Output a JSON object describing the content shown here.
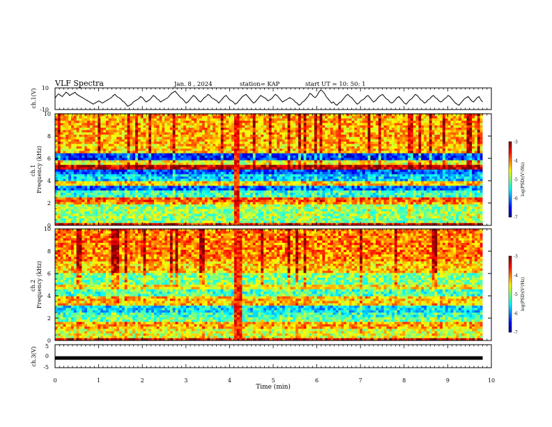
{
  "header": {
    "title": "VLF Spectra",
    "date": "Jan. 8 , 2024",
    "station": "station= KAP",
    "start_time": "start UT = 10: 50: 1"
  },
  "chart_data": [
    {
      "type": "line",
      "ylabel": "ch.1(V)",
      "ylim": [
        -10,
        10
      ],
      "yticks": [
        "10",
        "-10"
      ],
      "xlim": [
        0,
        10
      ],
      "x_end": 9.8,
      "series": [
        {
          "values": [
            0.5,
            3,
            4.5,
            3,
            2,
            4,
            6,
            5,
            3,
            4,
            5,
            6,
            4,
            3,
            2,
            1,
            0,
            -1,
            -2,
            -3,
            -4,
            -5,
            -4,
            -3,
            -2,
            -3,
            -4,
            -3,
            -2,
            -1,
            0,
            1,
            3,
            4,
            2,
            1,
            0,
            -2,
            -3,
            -5,
            -7,
            -6,
            -5,
            -3,
            -2,
            -1,
            0,
            2,
            1,
            -1,
            -3,
            -2,
            -1,
            1,
            3,
            2,
            0,
            -1,
            -3,
            -2,
            -1,
            0,
            1,
            3,
            5,
            6,
            7,
            5,
            3,
            1,
            0,
            -2,
            -4,
            -3,
            -1,
            1,
            3,
            2,
            0,
            -2,
            -3,
            -1,
            1,
            2,
            4,
            3,
            1,
            0,
            -1,
            -2,
            -4,
            -2,
            0,
            2,
            3,
            1,
            -1,
            -2,
            -3,
            -5,
            -4,
            -2,
            0,
            2,
            3,
            4,
            2,
            0,
            -2,
            -4,
            -3,
            -1,
            1,
            3,
            2,
            1,
            0,
            -2,
            -1,
            0,
            2,
            4,
            3,
            1,
            -1,
            -3,
            -2,
            -1,
            0,
            1,
            0,
            -1,
            -3,
            -4,
            -6,
            -5,
            -3,
            -2,
            0,
            2,
            5,
            4,
            2,
            1,
            3,
            6,
            8,
            7,
            5,
            2,
            0,
            -2,
            -4,
            -3,
            -5,
            -6,
            -4,
            -3,
            -1,
            1,
            3,
            4,
            2,
            1,
            -1,
            -3,
            -5,
            -4,
            -2,
            -1,
            0,
            2,
            3,
            1,
            -1,
            -3,
            -2,
            0,
            2,
            3,
            4,
            2,
            0,
            -1,
            -3,
            -4,
            -3,
            -1,
            1,
            2,
            0,
            -2,
            -4,
            -5,
            -3,
            -1,
            0,
            2,
            4,
            3,
            1,
            -1,
            -2,
            -4,
            -3,
            -1,
            0,
            2,
            3,
            1,
            0,
            -2,
            -3,
            -2,
            0,
            1,
            3,
            2,
            0,
            -2,
            -4,
            -5,
            -6,
            -4,
            -2,
            0,
            1,
            2,
            0,
            -2,
            -3,
            -1,
            1,
            2,
            -1,
            -3
          ]
        }
      ]
    },
    {
      "type": "heatmap",
      "ylabel": "ch.1\nFrequency (kHz)",
      "ylim": [
        0,
        10
      ],
      "yticks": [
        "0",
        "2",
        "4",
        "6",
        "8",
        "10"
      ],
      "colorbar": {
        "label": "log(PSD)(V²/Hz)",
        "range": [
          -7,
          -3
        ],
        "ticks": [
          "-3",
          "-4",
          "-5",
          "-6",
          "-7"
        ]
      },
      "bands_khz": [
        {
          "f0": 0.0,
          "f1": 0.3,
          "level": -3.6
        },
        {
          "f0": 0.3,
          "f1": 0.7,
          "level": -5.0
        },
        {
          "f0": 0.7,
          "f1": 1.8,
          "level": -4.9
        },
        {
          "f0": 1.8,
          "f1": 2.1,
          "level": -4.2
        },
        {
          "f0": 2.1,
          "f1": 2.5,
          "level": -3.9
        },
        {
          "f0": 2.5,
          "f1": 3.1,
          "level": -5.3
        },
        {
          "f0": 3.1,
          "f1": 3.6,
          "level": -6.1
        },
        {
          "f0": 3.6,
          "f1": 4.0,
          "level": -4.4
        },
        {
          "f0": 4.0,
          "f1": 4.6,
          "level": -5.7
        },
        {
          "f0": 4.6,
          "f1": 5.0,
          "level": -6.2
        },
        {
          "f0": 5.0,
          "f1": 5.5,
          "level": -3.3
        },
        {
          "f0": 5.5,
          "f1": 5.8,
          "level": -4.6
        },
        {
          "f0": 5.8,
          "f1": 6.5,
          "level": -6.4
        },
        {
          "f0": 6.5,
          "f1": 7.2,
          "level": -4.3
        },
        {
          "f0": 7.2,
          "f1": 10.0,
          "level": -4.2
        }
      ]
    },
    {
      "type": "heatmap",
      "ylabel": "ch.2\nFrequency (kHz)",
      "ylim": [
        0,
        10
      ],
      "yticks": [
        "0",
        "2",
        "4",
        "6",
        "8",
        "10"
      ],
      "colorbar": {
        "label": "log(PSD)(V²/Hz)",
        "range": [
          -7,
          -3
        ],
        "ticks": [
          "-3",
          "-4",
          "-5",
          "-6",
          "-7"
        ]
      },
      "bands_khz": [
        {
          "f0": 0.0,
          "f1": 0.3,
          "level": -3.5
        },
        {
          "f0": 0.3,
          "f1": 1.0,
          "level": -4.6
        },
        {
          "f0": 1.0,
          "f1": 1.6,
          "level": -4.2
        },
        {
          "f0": 1.6,
          "f1": 2.0,
          "level": -5.1
        },
        {
          "f0": 2.0,
          "f1": 2.6,
          "level": -5.3
        },
        {
          "f0": 2.6,
          "f1": 3.2,
          "level": -5.6
        },
        {
          "f0": 3.2,
          "f1": 4.0,
          "level": -4.3
        },
        {
          "f0": 4.0,
          "f1": 4.6,
          "level": -5.2
        },
        {
          "f0": 4.6,
          "f1": 5.0,
          "level": -4.5
        },
        {
          "f0": 5.0,
          "f1": 6.0,
          "level": -5.0
        },
        {
          "f0": 6.0,
          "f1": 7.0,
          "level": -4.3
        },
        {
          "f0": 7.0,
          "f1": 10.0,
          "level": -4.0
        }
      ],
      "burst_minutes": [
        4.05,
        4.25
      ]
    },
    {
      "type": "line",
      "ylabel": "ch.3(V)",
      "ylim": [
        -5,
        5
      ],
      "yticks": [
        "5",
        "0",
        "-5"
      ],
      "series": [
        {
          "constant": -0.8
        }
      ]
    }
  ],
  "x_axis": {
    "label": "Time (min)",
    "range": [
      0,
      10
    ],
    "ticks": [
      "0",
      "1",
      "2",
      "3",
      "4",
      "5",
      "6",
      "7",
      "8",
      "9",
      "10"
    ]
  }
}
